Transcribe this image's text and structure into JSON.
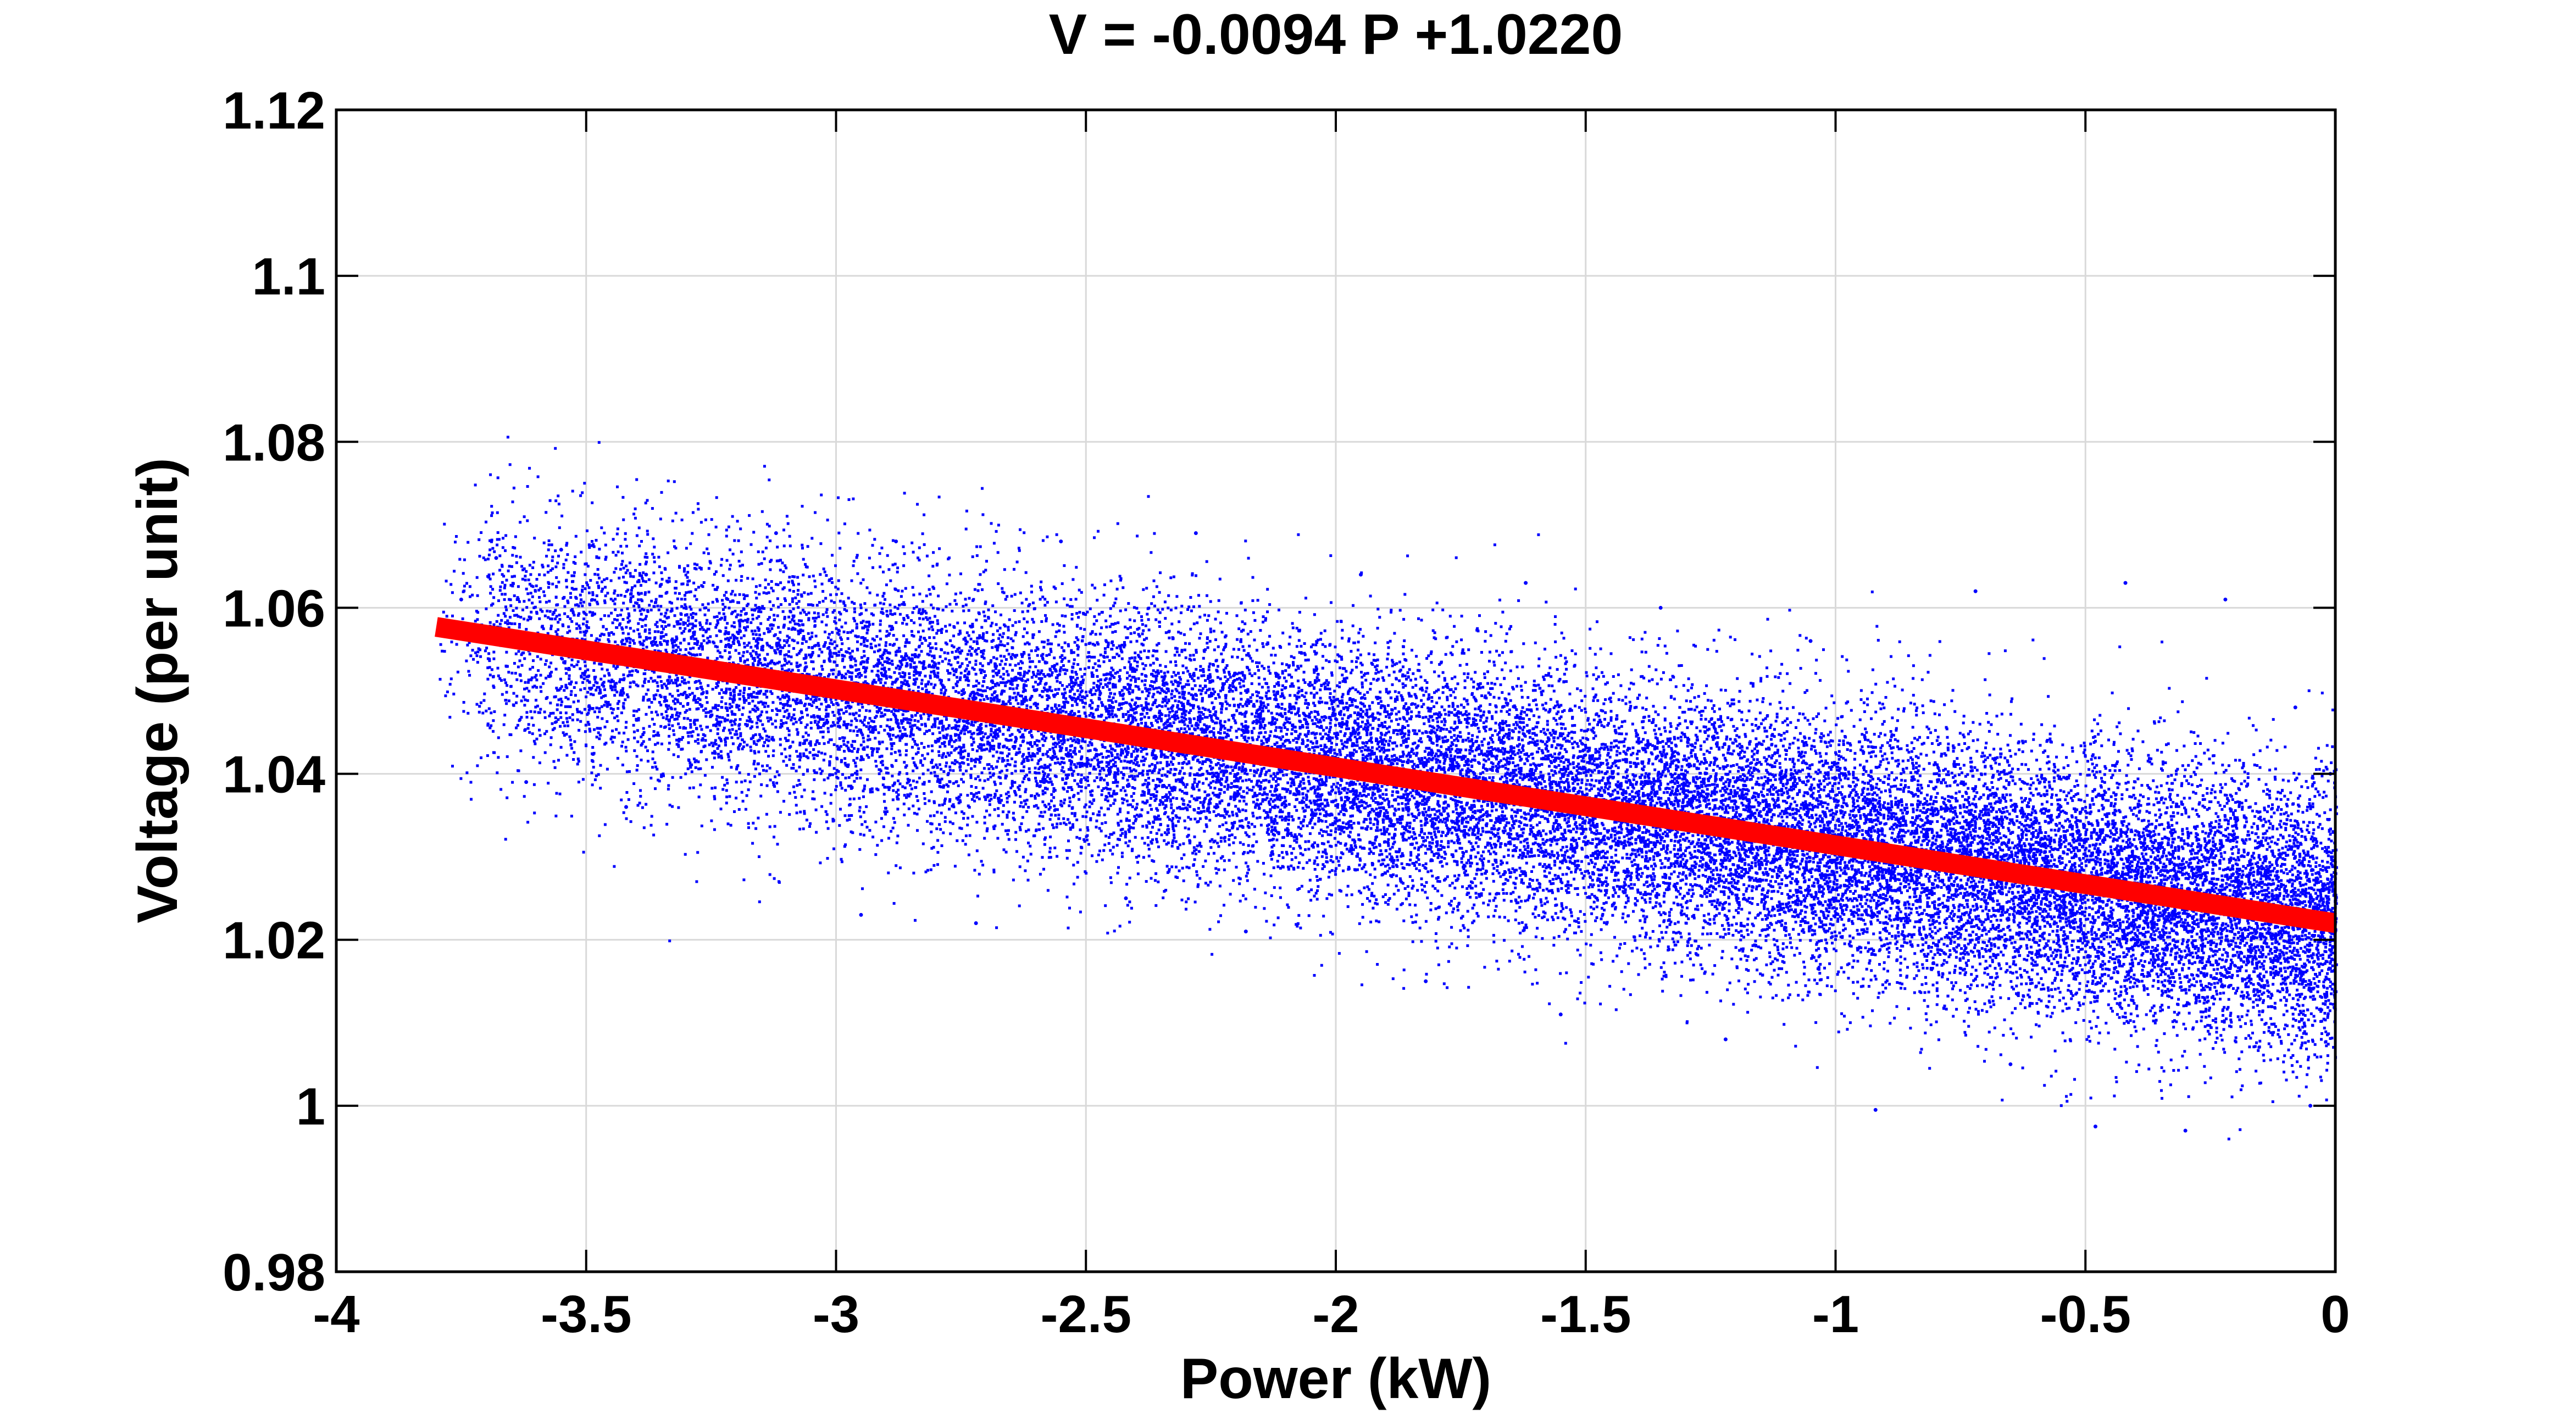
{
  "chart_data": {
    "type": "scatter",
    "title": "V = -0.0094 P +1.0220",
    "xlabel": "Power (kW)",
    "ylabel": "Voltage (per unit)",
    "xlim": [
      -4,
      0
    ],
    "ylim": [
      0.98,
      1.12
    ],
    "xticks": [
      -4,
      -3.5,
      -3,
      -2.5,
      -2,
      -1.5,
      -1,
      -0.5,
      0
    ],
    "xtick_labels": [
      "-4",
      "-3.5",
      "-3",
      "-2.5",
      "-2",
      "-1.5",
      "-1",
      "-0.5",
      "0"
    ],
    "yticks": [
      0.98,
      1,
      1.02,
      1.04,
      1.06,
      1.08,
      1.1,
      1.12
    ],
    "ytick_labels": [
      "0.98",
      "1",
      "1.02",
      "1.04",
      "1.06",
      "1.08",
      "1.1",
      "1.12"
    ],
    "grid": true,
    "series": [
      {
        "type": "scatter",
        "color": "#0000ff",
        "x_range": [
          -3.8,
          0
        ],
        "trend_slope": -0.0094,
        "trend_intercept": 1.022,
        "approx_spread": 0.008,
        "points": [
          [
            -3.75,
            1.061
          ],
          [
            -3.68,
            1.066
          ],
          [
            -3.62,
            1.039
          ],
          [
            -3.55,
            1.067
          ],
          [
            -3.42,
            1.036
          ],
          [
            -3.38,
            1.064
          ],
          [
            -3.25,
            1.047
          ],
          [
            -3.12,
            1.069
          ],
          [
            -2.95,
            1.023
          ],
          [
            -2.88,
            1.068
          ],
          [
            -2.72,
            1.022
          ],
          [
            -2.55,
            1.068
          ],
          [
            -2.42,
            1.025
          ],
          [
            -2.28,
            1.069
          ],
          [
            -2.18,
            1.021
          ],
          [
            -1.95,
            1.064
          ],
          [
            -1.82,
            1.015
          ],
          [
            -1.62,
            1.063
          ],
          [
            -1.55,
            1.011
          ],
          [
            -1.35,
            1.06
          ],
          [
            -1.22,
            1.008
          ],
          [
            -1.05,
            1.056
          ],
          [
            -0.92,
            0.9995
          ],
          [
            -0.72,
            1.062
          ],
          [
            -0.65,
            1.005
          ],
          [
            -0.42,
            1.063
          ],
          [
            -0.48,
            0.9975
          ],
          [
            -0.22,
            1.061
          ],
          [
            -0.3,
            0.997
          ],
          [
            -0.08,
            1.048
          ],
          [
            -0.05,
            1.0
          ],
          [
            -0.01,
            1.04
          ]
        ]
      },
      {
        "type": "line",
        "color": "#ff0000",
        "x": [
          -3.8,
          0
        ],
        "y": [
          1.0577,
          1.022
        ]
      }
    ]
  }
}
